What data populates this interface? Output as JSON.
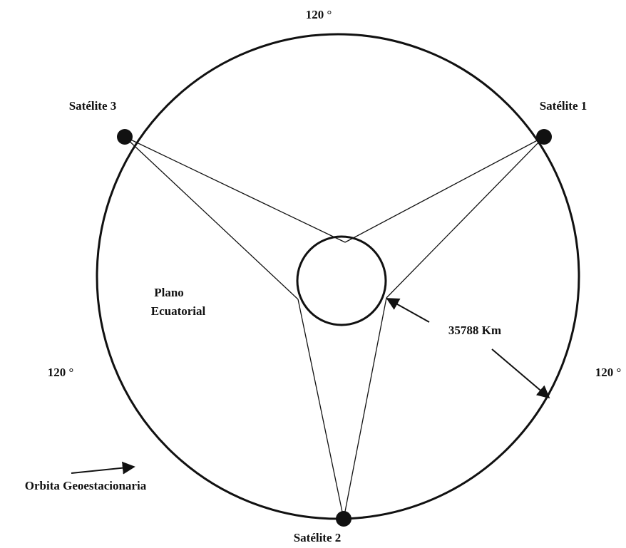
{
  "angles": [
    "120 °",
    "120 °",
    "120 °"
  ],
  "satellites": [
    "Satélite 1",
    "Satélite 2",
    "Satélite 3"
  ],
  "plane": [
    "Plano",
    "Ecuatorial"
  ],
  "distance": "35788 Km",
  "orbit": "Orbita Geoestacionaria"
}
